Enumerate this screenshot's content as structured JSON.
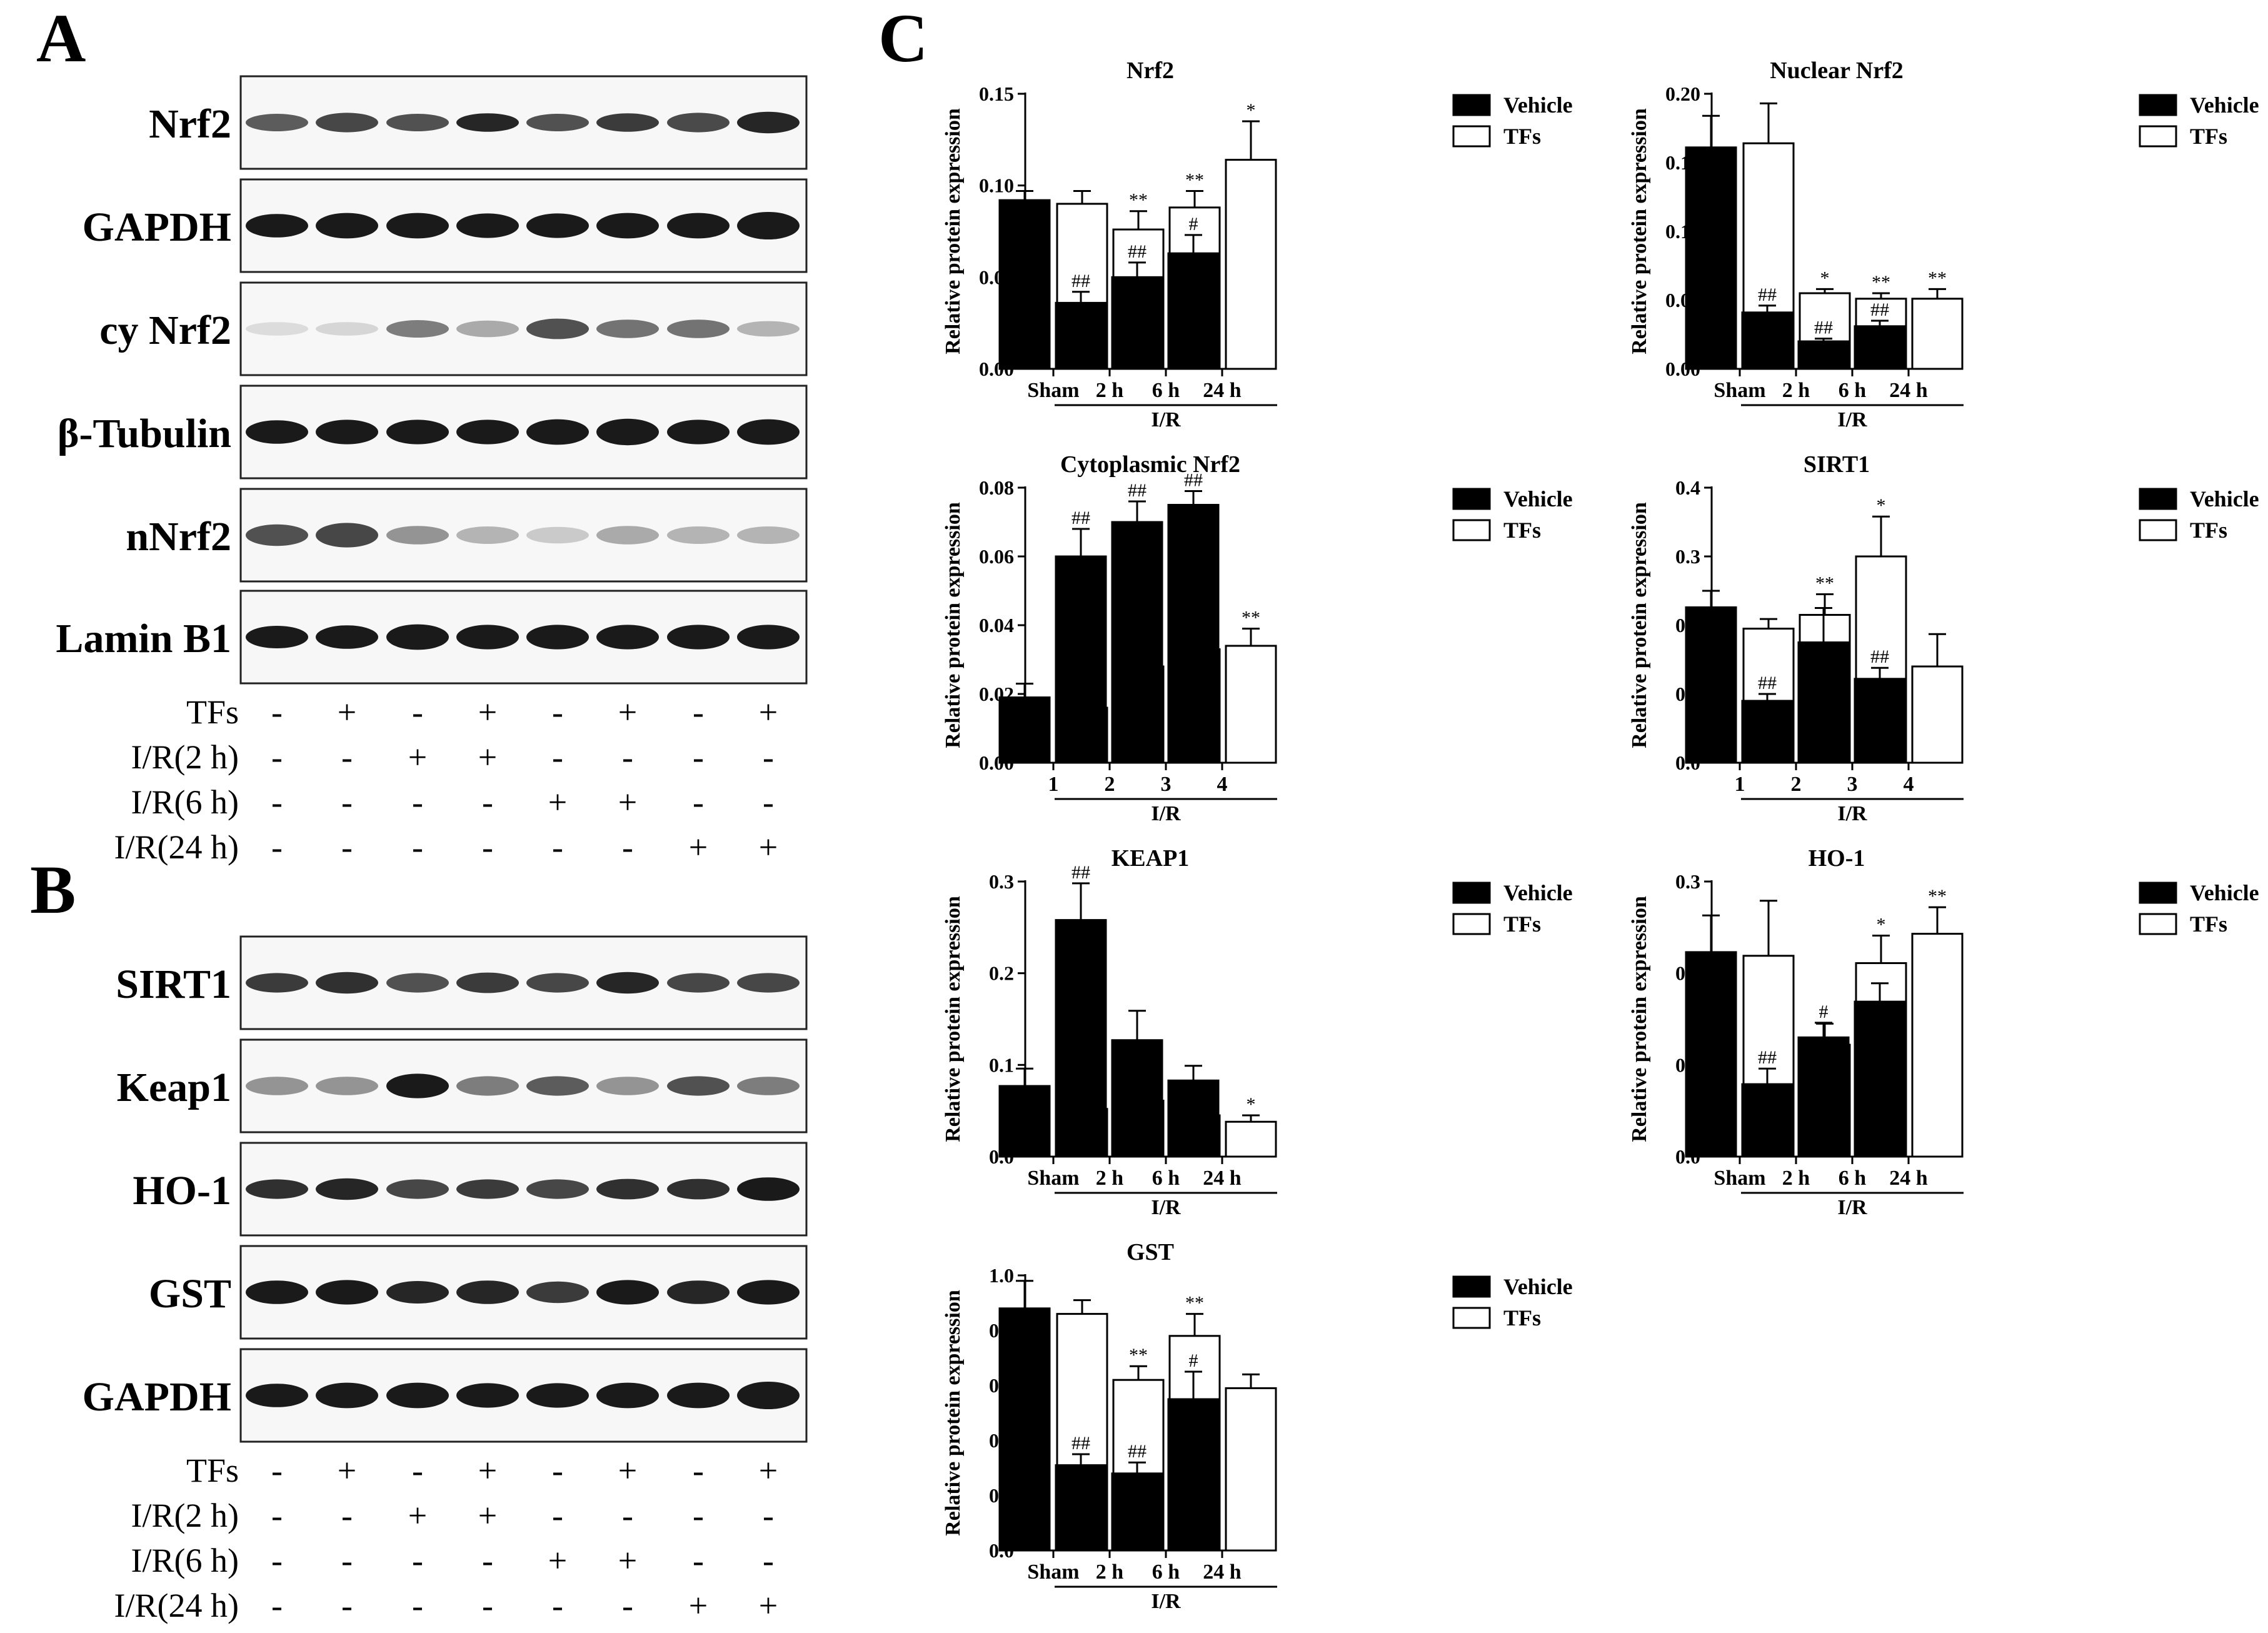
{
  "panels": {
    "a": "A",
    "b": "B",
    "c": "C"
  },
  "blot_a": {
    "labels": [
      "Nrf2",
      "GAPDH",
      "cy Nrf2",
      "β-Tubulin",
      "nNrf2",
      "Lamin B1"
    ],
    "conditions": [
      {
        "label": "TFs",
        "signs": [
          "-",
          "+",
          "-",
          "+",
          "-",
          "+",
          "-",
          "+"
        ]
      },
      {
        "label": "I/R(2 h)",
        "signs": [
          "-",
          "-",
          "+",
          "+",
          "-",
          "-",
          "-",
          "-"
        ]
      },
      {
        "label": "I/R(6 h)",
        "signs": [
          "-",
          "-",
          "-",
          "-",
          "+",
          "+",
          "-",
          "-"
        ]
      },
      {
        "label": "I/R(24 h)",
        "signs": [
          "-",
          "-",
          "-",
          "-",
          "-",
          "-",
          "+",
          "+"
        ]
      }
    ]
  },
  "blot_b": {
    "labels": [
      "SIRT1",
      "Keap1",
      "HO-1",
      "GST",
      "GAPDH"
    ],
    "conditions": [
      {
        "label": "TFs",
        "signs": [
          "-",
          "+",
          "-",
          "+",
          "-",
          "+",
          "-",
          "+"
        ]
      },
      {
        "label": "I/R(2 h)",
        "signs": [
          "-",
          "-",
          "+",
          "+",
          "-",
          "-",
          "-",
          "-"
        ]
      },
      {
        "label": "I/R(6 h)",
        "signs": [
          "-",
          "-",
          "-",
          "-",
          "+",
          "+",
          "-",
          "-"
        ]
      },
      {
        "label": "I/R(24 h)",
        "signs": [
          "-",
          "-",
          "-",
          "-",
          "-",
          "-",
          "+",
          "+"
        ]
      }
    ]
  },
  "colors": {
    "vehicle": "#000000",
    "tfs": "#ffffff",
    "band": "#1a1a1a"
  },
  "chart_data": [
    {
      "type": "bar",
      "title": "Nrf2",
      "ylabel": "Relative protein expression",
      "categories": [
        "Sham",
        "2 h",
        "6 h",
        "24 h"
      ],
      "group_label": "I/R",
      "ylim": [
        0,
        0.15
      ],
      "yticks": [
        "0.00",
        "0.05",
        "0.10",
        "0.15"
      ],
      "series": [
        {
          "name": "Vehicle",
          "values": [
            0.092,
            0.036,
            0.05,
            0.063
          ],
          "errors": [
            0.005,
            0.006,
            0.008,
            0.01
          ],
          "marks": [
            "",
            "##",
            "##",
            "#"
          ]
        },
        {
          "name": "TFs",
          "values": [
            0.09,
            0.076,
            0.088,
            0.114
          ],
          "errors": [
            0.007,
            0.01,
            0.009,
            0.021
          ],
          "marks": [
            "",
            "**",
            "**",
            "*"
          ]
        }
      ]
    },
    {
      "type": "bar",
      "title": "Nuclear Nrf2",
      "ylabel": "Relative protein expression",
      "categories": [
        "Sham",
        "2 h",
        "6 h",
        "24 h"
      ],
      "group_label": "I/R",
      "ylim": [
        0,
        0.2
      ],
      "yticks": [
        "0.00",
        "0.05",
        "0.10",
        "0.15",
        "0.20"
      ],
      "series": [
        {
          "name": "Vehicle",
          "values": [
            0.161,
            0.041,
            0.02,
            0.031
          ],
          "errors": [
            0.023,
            0.005,
            0.002,
            0.004
          ],
          "marks": [
            "",
            "##",
            "##",
            "##"
          ]
        },
        {
          "name": "TFs",
          "values": [
            0.164,
            0.055,
            0.051,
            0.051
          ],
          "errors": [
            0.029,
            0.003,
            0.004,
            0.007
          ],
          "marks": [
            "",
            "*",
            "**",
            "**"
          ]
        }
      ]
    },
    {
      "type": "bar",
      "title": "Cytoplasmic Nrf2",
      "ylabel": "Relative protein expression",
      "categories": [
        "1",
        "2",
        "3",
        "4"
      ],
      "group_label": "I/R",
      "ylim": [
        0,
        0.08
      ],
      "yticks": [
        "0.00",
        "0.02",
        "0.04",
        "0.06",
        "0.08"
      ],
      "series": [
        {
          "name": "Vehicle",
          "values": [
            0.019,
            0.06,
            0.07,
            0.075
          ],
          "errors": [
            0.004,
            0.008,
            0.006,
            0.004
          ],
          "marks": [
            "",
            "##",
            "##",
            "##"
          ]
        },
        {
          "name": "TFs",
          "values": [
            0.016,
            0.028,
            0.033,
            0.034
          ],
          "errors": [
            0.003,
            0.004,
            0.004,
            0.005
          ],
          "marks": [
            "",
            "**",
            "**",
            "**"
          ]
        }
      ]
    },
    {
      "type": "bar",
      "title": "SIRT1",
      "ylabel": "Relative protein expression",
      "categories": [
        "1",
        "2",
        "3",
        "4"
      ],
      "group_label": "I/R",
      "ylim": [
        0,
        0.4
      ],
      "yticks": [
        "0.0",
        "0.1",
        "0.2",
        "0.3",
        "0.4"
      ],
      "series": [
        {
          "name": "Vehicle",
          "values": [
            0.226,
            0.09,
            0.175,
            0.122
          ],
          "errors": [
            0.024,
            0.01,
            0.05,
            0.016
          ],
          "marks": [
            "",
            "##",
            "",
            "##"
          ]
        },
        {
          "name": "TFs",
          "values": [
            0.195,
            0.215,
            0.3,
            0.14
          ],
          "errors": [
            0.014,
            0.03,
            0.058,
            0.047
          ],
          "marks": [
            "",
            "**",
            "*",
            ""
          ]
        }
      ]
    },
    {
      "type": "bar",
      "title": "KEAP1",
      "ylabel": "Relative protein expression",
      "categories": [
        "Sham",
        "2 h",
        "6 h",
        "24 h"
      ],
      "group_label": "I/R",
      "ylim": [
        0,
        0.3
      ],
      "yticks": [
        "0.0",
        "0.1",
        "0.2",
        "0.3"
      ],
      "series": [
        {
          "name": "Vehicle",
          "values": [
            0.077,
            0.258,
            0.127,
            0.083
          ],
          "errors": [
            0.019,
            0.04,
            0.032,
            0.016
          ],
          "marks": [
            "",
            "##",
            "",
            ""
          ]
        },
        {
          "name": "TFs",
          "values": [
            0.052,
            0.061,
            0.045,
            0.038
          ],
          "errors": [
            0.015,
            0.005,
            0.005,
            0.007
          ],
          "marks": [
            "",
            "**",
            "**",
            "*"
          ]
        }
      ]
    },
    {
      "type": "bar",
      "title": "HO-1",
      "ylabel": "Relative protein expression",
      "categories": [
        "Sham",
        "2 h",
        "6 h",
        "24 h"
      ],
      "group_label": "I/R",
      "ylim": [
        0,
        0.3
      ],
      "yticks": [
        "0.0",
        "0.1",
        "0.2",
        "0.3"
      ],
      "series": [
        {
          "name": "Vehicle",
          "values": [
            0.223,
            0.079,
            0.13,
            0.169
          ],
          "errors": [
            0.04,
            0.017,
            0.016,
            0.02
          ],
          "marks": [
            "",
            "##",
            "#",
            ""
          ]
        },
        {
          "name": "TFs",
          "values": [
            0.219,
            0.122,
            0.211,
            0.243
          ],
          "errors": [
            0.06,
            0.023,
            0.03,
            0.029
          ],
          "marks": [
            "",
            "",
            "*",
            "**"
          ]
        }
      ]
    },
    {
      "type": "bar",
      "title": "GST",
      "ylabel": "Relative protein expression",
      "categories": [
        "Sham",
        "2 h",
        "6 h",
        "24 h"
      ],
      "group_label": "I/R",
      "ylim": [
        0,
        1.0
      ],
      "yticks": [
        "0.0",
        "0.2",
        "0.4",
        "0.6",
        "0.8",
        "1.0"
      ],
      "series": [
        {
          "name": "Vehicle",
          "values": [
            0.88,
            0.31,
            0.28,
            0.55
          ],
          "errors": [
            0.1,
            0.04,
            0.04,
            0.1
          ],
          "marks": [
            "",
            "##",
            "##",
            "#"
          ]
        },
        {
          "name": "TFs",
          "values": [
            0.86,
            0.62,
            0.78,
            0.59
          ],
          "errors": [
            0.05,
            0.05,
            0.08,
            0.05
          ],
          "marks": [
            "",
            "**",
            "**",
            ""
          ]
        }
      ]
    }
  ]
}
